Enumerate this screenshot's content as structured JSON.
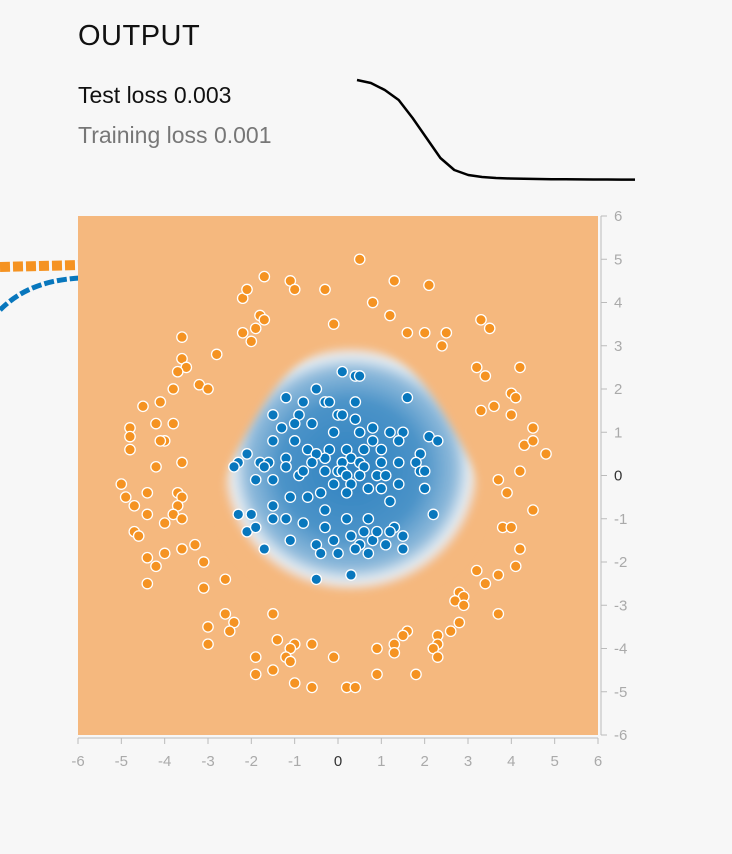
{
  "output": {
    "title": "OUTPUT",
    "test_loss_label": "Test loss",
    "test_loss_value": "0.003",
    "training_loss_label": "Training loss",
    "training_loss_value": "0.001"
  },
  "loss_curve": [
    1.0,
    0.97,
    0.9,
    0.8,
    0.62,
    0.42,
    0.22,
    0.1,
    0.05,
    0.03,
    0.02,
    0.015,
    0.012,
    0.01,
    0.008,
    0.007,
    0.006,
    0.005,
    0.005,
    0.004,
    0.004
  ],
  "colors": {
    "orange": "#f59322",
    "blue": "#0877bd",
    "heat_orange": "#f5b87e",
    "background": "#f7f7f7"
  },
  "chart_data": {
    "type": "scatter",
    "xlim": [
      -6,
      6
    ],
    "ylim": [
      -6,
      6
    ],
    "x_ticks": [
      "-6",
      "-5",
      "-4",
      "-3",
      "-2",
      "-1",
      "0",
      "1",
      "2",
      "3",
      "4",
      "5",
      "6"
    ],
    "y_ticks": [
      "6",
      "5",
      "4",
      "3",
      "2",
      "1",
      "0",
      "-1",
      "-2",
      "-3",
      "-4",
      "-5",
      "-6"
    ],
    "heatmap": {
      "center": [
        0.3,
        -0.1
      ],
      "radius": 2.9,
      "shape": "rounded-triangle"
    },
    "series": [
      {
        "class": "orange",
        "color": "#f59322",
        "points": [
          [
            0.5,
            5.0
          ],
          [
            -1.7,
            4.6
          ],
          [
            -1.1,
            4.5
          ],
          [
            -0.3,
            4.3
          ],
          [
            1.3,
            4.5
          ],
          [
            2.1,
            4.4
          ],
          [
            -1.0,
            4.3
          ],
          [
            -2.2,
            4.1
          ],
          [
            -2.1,
            4.3
          ],
          [
            0.8,
            4.0
          ],
          [
            -1.8,
            3.7
          ],
          [
            -1.7,
            3.6
          ],
          [
            -0.1,
            3.5
          ],
          [
            1.2,
            3.7
          ],
          [
            3.3,
            3.6
          ],
          [
            -2.2,
            3.3
          ],
          [
            -1.9,
            3.4
          ],
          [
            1.6,
            3.3
          ],
          [
            2.0,
            3.3
          ],
          [
            2.5,
            3.3
          ],
          [
            3.5,
            3.4
          ],
          [
            -3.6,
            3.2
          ],
          [
            -2.0,
            3.1
          ],
          [
            2.4,
            3.0
          ],
          [
            -2.8,
            2.8
          ],
          [
            -3.6,
            2.7
          ],
          [
            -3.5,
            2.5
          ],
          [
            3.2,
            2.5
          ],
          [
            4.2,
            2.5
          ],
          [
            -3.7,
            2.4
          ],
          [
            3.4,
            2.3
          ],
          [
            -3.2,
            2.1
          ],
          [
            -3.0,
            2.0
          ],
          [
            -3.8,
            2.0
          ],
          [
            4.0,
            1.9
          ],
          [
            4.1,
            1.8
          ],
          [
            -4.1,
            1.7
          ],
          [
            -4.5,
            1.6
          ],
          [
            3.6,
            1.6
          ],
          [
            3.3,
            1.5
          ],
          [
            4.0,
            1.4
          ],
          [
            -4.2,
            1.2
          ],
          [
            -3.8,
            1.2
          ],
          [
            -4.8,
            1.1
          ],
          [
            4.5,
            1.1
          ],
          [
            -4.8,
            0.9
          ],
          [
            -4.0,
            0.8
          ],
          [
            -4.1,
            0.8
          ],
          [
            4.3,
            0.7
          ],
          [
            4.5,
            0.8
          ],
          [
            -4.8,
            0.6
          ],
          [
            4.8,
            0.5
          ],
          [
            -3.6,
            0.3
          ],
          [
            -4.2,
            0.2
          ],
          [
            4.2,
            0.1
          ],
          [
            3.7,
            -0.1
          ],
          [
            -5.0,
            -0.2
          ],
          [
            -3.7,
            -0.4
          ],
          [
            -4.4,
            -0.4
          ],
          [
            -3.6,
            -0.5
          ],
          [
            -4.9,
            -0.5
          ],
          [
            3.9,
            -0.4
          ],
          [
            -4.7,
            -0.7
          ],
          [
            -3.7,
            -0.7
          ],
          [
            -3.8,
            -0.9
          ],
          [
            -4.4,
            -0.9
          ],
          [
            4.5,
            -0.8
          ],
          [
            -3.6,
            -1.0
          ],
          [
            -4.0,
            -1.1
          ],
          [
            3.8,
            -1.2
          ],
          [
            4.0,
            -1.2
          ],
          [
            -4.7,
            -1.3
          ],
          [
            -4.6,
            -1.4
          ],
          [
            -3.3,
            -1.6
          ],
          [
            -3.6,
            -1.7
          ],
          [
            4.2,
            -1.7
          ],
          [
            -4.0,
            -1.8
          ],
          [
            -4.4,
            -1.9
          ],
          [
            -4.2,
            -2.1
          ],
          [
            -3.1,
            -2.0
          ],
          [
            4.1,
            -2.1
          ],
          [
            3.2,
            -2.2
          ],
          [
            3.7,
            -2.3
          ],
          [
            -2.6,
            -2.4
          ],
          [
            3.4,
            -2.5
          ],
          [
            -4.4,
            -2.5
          ],
          [
            -3.1,
            -2.6
          ],
          [
            2.8,
            -2.7
          ],
          [
            2.9,
            -2.8
          ],
          [
            2.7,
            -2.9
          ],
          [
            2.9,
            -3.0
          ],
          [
            3.7,
            -3.2
          ],
          [
            -2.6,
            -3.2
          ],
          [
            -1.5,
            -3.2
          ],
          [
            -2.4,
            -3.4
          ],
          [
            -3.0,
            -3.5
          ],
          [
            -2.5,
            -3.6
          ],
          [
            2.8,
            -3.4
          ],
          [
            2.6,
            -3.6
          ],
          [
            1.6,
            -3.6
          ],
          [
            1.5,
            -3.7
          ],
          [
            2.3,
            -3.7
          ],
          [
            -1.4,
            -3.8
          ],
          [
            -0.6,
            -3.9
          ],
          [
            -1.0,
            -3.9
          ],
          [
            1.3,
            -3.9
          ],
          [
            2.3,
            -3.9
          ],
          [
            2.2,
            -4.0
          ],
          [
            -3.0,
            -3.9
          ],
          [
            -1.1,
            -4.0
          ],
          [
            0.9,
            -4.0
          ],
          [
            1.3,
            -4.1
          ],
          [
            -1.2,
            -4.2
          ],
          [
            -1.9,
            -4.2
          ],
          [
            -0.1,
            -4.2
          ],
          [
            2.3,
            -4.2
          ],
          [
            -1.1,
            -4.3
          ],
          [
            -1.5,
            -4.5
          ],
          [
            -1.9,
            -4.6
          ],
          [
            0.9,
            -4.6
          ],
          [
            1.8,
            -4.6
          ],
          [
            -1.0,
            -4.8
          ],
          [
            -0.6,
            -4.9
          ],
          [
            0.2,
            -4.9
          ],
          [
            0.4,
            -4.9
          ]
        ]
      },
      {
        "class": "blue",
        "color": "#0877bd",
        "points": [
          [
            0.1,
            2.4
          ],
          [
            0.4,
            2.3
          ],
          [
            0.5,
            2.3
          ],
          [
            -0.5,
            2.0
          ],
          [
            -1.2,
            1.8
          ],
          [
            1.6,
            1.8
          ],
          [
            -0.3,
            1.7
          ],
          [
            -0.8,
            1.7
          ],
          [
            -0.2,
            1.7
          ],
          [
            0.4,
            1.7
          ],
          [
            0.0,
            1.4
          ],
          [
            0.1,
            1.4
          ],
          [
            -1.5,
            1.4
          ],
          [
            -0.9,
            1.4
          ],
          [
            0.4,
            1.3
          ],
          [
            -0.6,
            1.2
          ],
          [
            -1.0,
            1.2
          ],
          [
            0.8,
            1.1
          ],
          [
            1.5,
            1.0
          ],
          [
            -1.3,
            1.1
          ],
          [
            -0.1,
            1.0
          ],
          [
            0.5,
            1.0
          ],
          [
            1.2,
            1.0
          ],
          [
            2.1,
            0.9
          ],
          [
            1.4,
            0.8
          ],
          [
            0.8,
            0.8
          ],
          [
            -1.5,
            0.8
          ],
          [
            -1.0,
            0.8
          ],
          [
            2.3,
            0.8
          ],
          [
            -0.7,
            0.6
          ],
          [
            -0.2,
            0.6
          ],
          [
            0.2,
            0.6
          ],
          [
            0.6,
            0.6
          ],
          [
            1.0,
            0.6
          ],
          [
            -2.1,
            0.5
          ],
          [
            1.9,
            0.5
          ],
          [
            -0.3,
            0.4
          ],
          [
            -0.5,
            0.5
          ],
          [
            -1.2,
            0.4
          ],
          [
            0.3,
            0.4
          ],
          [
            -2.3,
            0.3
          ],
          [
            -1.8,
            0.3
          ],
          [
            -1.6,
            0.3
          ],
          [
            -0.6,
            0.3
          ],
          [
            0.1,
            0.3
          ],
          [
            0.5,
            0.3
          ],
          [
            0.6,
            0.2
          ],
          [
            1.0,
            0.3
          ],
          [
            1.4,
            0.3
          ],
          [
            1.8,
            0.3
          ],
          [
            -2.4,
            0.2
          ],
          [
            -1.7,
            0.2
          ],
          [
            -1.2,
            0.2
          ],
          [
            -0.9,
            0.0
          ],
          [
            -0.8,
            0.1
          ],
          [
            -0.3,
            0.1
          ],
          [
            0.0,
            0.1
          ],
          [
            0.1,
            0.1
          ],
          [
            0.2,
            0.0
          ],
          [
            0.5,
            0.0
          ],
          [
            0.9,
            0.0
          ],
          [
            1.1,
            0.0
          ],
          [
            1.9,
            0.1
          ],
          [
            2.0,
            0.1
          ],
          [
            -1.9,
            -0.1
          ],
          [
            -1.5,
            -0.1
          ],
          [
            -0.1,
            -0.2
          ],
          [
            0.3,
            -0.2
          ],
          [
            1.4,
            -0.2
          ],
          [
            2.0,
            -0.3
          ],
          [
            -0.4,
            -0.4
          ],
          [
            0.2,
            -0.4
          ],
          [
            0.7,
            -0.3
          ],
          [
            1.0,
            -0.3
          ],
          [
            -1.1,
            -0.5
          ],
          [
            -0.7,
            -0.5
          ],
          [
            -1.5,
            -0.7
          ],
          [
            -0.3,
            -0.8
          ],
          [
            1.2,
            -0.6
          ],
          [
            2.2,
            -0.9
          ],
          [
            -2.3,
            -0.9
          ],
          [
            -2.0,
            -0.9
          ],
          [
            -1.5,
            -1.0
          ],
          [
            -1.2,
            -1.0
          ],
          [
            -0.8,
            -1.1
          ],
          [
            0.2,
            -1.0
          ],
          [
            -0.3,
            -1.2
          ],
          [
            1.3,
            -1.2
          ],
          [
            0.6,
            -1.3
          ],
          [
            0.3,
            -1.4
          ],
          [
            -1.1,
            -1.5
          ],
          [
            1.5,
            -1.4
          ],
          [
            -0.1,
            -1.5
          ],
          [
            0.8,
            -1.5
          ],
          [
            -0.5,
            -1.6
          ],
          [
            -1.7,
            -1.7
          ],
          [
            0.5,
            -1.6
          ],
          [
            0.4,
            -1.7
          ],
          [
            1.5,
            -1.7
          ],
          [
            1.1,
            -1.6
          ],
          [
            -0.4,
            -1.8
          ],
          [
            0.0,
            -1.8
          ],
          [
            0.7,
            -1.8
          ],
          [
            -2.1,
            -1.3
          ],
          [
            -1.9,
            -1.2
          ],
          [
            -0.5,
            -2.4
          ],
          [
            0.3,
            -2.3
          ],
          [
            1.2,
            -1.3
          ],
          [
            0.9,
            -1.3
          ],
          [
            0.7,
            -1.0
          ]
        ]
      }
    ]
  }
}
